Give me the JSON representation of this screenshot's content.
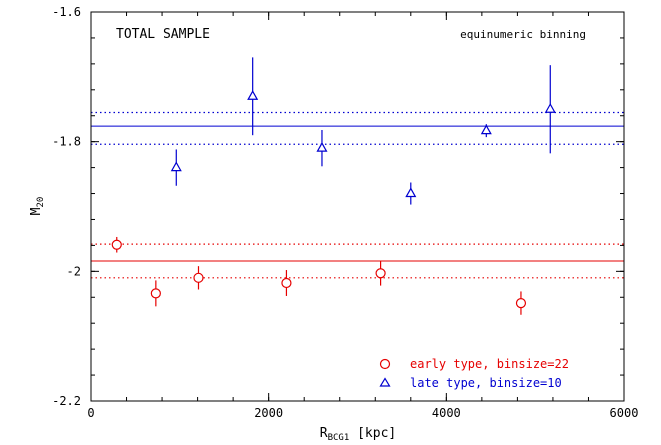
{
  "chart_data": {
    "type": "scatter",
    "xlabel": {
      "main": "R",
      "sub": "BCG1",
      "unit": " [kpc]"
    },
    "ylabel": {
      "main": "M",
      "sub": "20"
    },
    "xlim": [
      0,
      6000
    ],
    "ylim": [
      -2.2,
      -1.6
    ],
    "xticks": [
      0,
      2000,
      4000,
      6000
    ],
    "xtick_labels": [
      "0",
      "2000",
      "4000",
      "6000"
    ],
    "yticks": [
      -2.2,
      -2,
      -1.8,
      -1.6
    ],
    "ytick_labels": [
      "-2.2",
      "-2",
      "-1.8",
      "-1.6"
    ],
    "annotations": {
      "left": "TOTAL SAMPLE",
      "right": "equinumeric binning"
    },
    "series": [
      {
        "name": "early type, binsize=22",
        "marker": "circle",
        "color": "#e60000",
        "x": [
          290,
          730,
          1210,
          2200,
          3260,
          4840
        ],
        "y": [
          -1.959,
          -2.034,
          -2.01,
          -2.018,
          -2.003,
          -2.049
        ],
        "yerr": [
          0.012,
          0.02,
          0.018,
          0.02,
          0.019,
          0.018
        ],
        "mean": -1.984,
        "band": [
          -1.958,
          -2.01
        ]
      },
      {
        "name": "late type, binsize=10",
        "marker": "triangle",
        "color": "#0000d0",
        "x": [
          960,
          1820,
          2600,
          3600,
          4450,
          5170
        ],
        "y": [
          -1.84,
          -1.73,
          -1.81,
          -1.88,
          -1.783,
          -1.75
        ],
        "yerr": [
          0.028,
          0.06,
          0.028,
          0.017,
          0.01,
          0.068
        ],
        "mean": -1.776,
        "band": [
          -1.755,
          -1.804
        ]
      }
    ]
  }
}
